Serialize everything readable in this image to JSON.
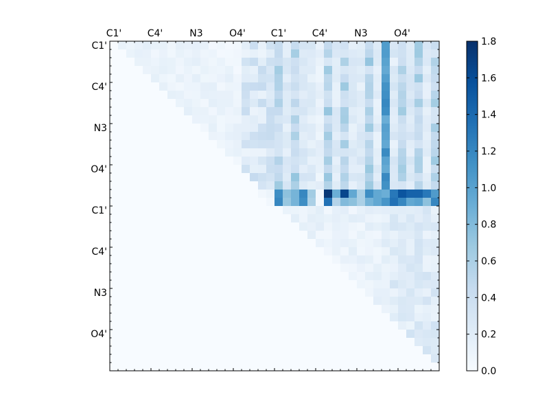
{
  "chart_data": {
    "type": "heatmap",
    "title": "",
    "xlabel": "",
    "ylabel": "",
    "colormap": "Blues",
    "x_tick_labels": [
      "C1'",
      "C4'",
      "N3",
      "O4'",
      "C1'",
      "C4'",
      "N3",
      "O4'"
    ],
    "y_tick_labels": [
      "C1'",
      "C4'",
      "N3",
      "O4'",
      "C1'",
      "C4'",
      "N3",
      "O4'"
    ],
    "grid_size": 40,
    "tick_step_cells": 5,
    "colorbar": {
      "vmin": 0.0,
      "vmax": 1.8,
      "tick_labels": [
        "0.0",
        "0.2",
        "0.4",
        "0.6",
        "0.8",
        "1.0",
        "1.2",
        "1.4",
        "1.6",
        "1.8"
      ]
    },
    "matrix_description": "upper-triangular weights; strong columns near C1' and O4' of second block; row 18-19 strongest",
    "strong_row_values": [
      [
        0.0,
        0,
        0,
        0,
        0,
        0,
        0,
        0,
        0,
        0,
        0,
        0,
        0,
        0,
        0,
        0,
        0,
        0,
        0.05,
        0.1,
        1.15,
        0.75,
        0.85,
        1.2,
        0.65,
        0.05,
        1.75,
        0.9,
        1.65,
        0.95,
        0.6,
        1.15,
        0.95,
        0.9,
        1.3,
        1.55,
        1.45,
        1.45,
        1.3,
        1.05
      ],
      [
        0.0,
        0,
        0,
        0,
        0,
        0,
        0,
        0,
        0,
        0,
        0,
        0,
        0,
        0,
        0,
        0,
        0,
        0,
        0,
        0.05,
        1.2,
        0.7,
        0.85,
        1.15,
        0.6,
        0.05,
        1.35,
        0.55,
        0.8,
        0.75,
        0.6,
        0.85,
        0.95,
        1.1,
        1.35,
        1.2,
        0.95,
        1.0,
        0.75,
        1.2
      ]
    ]
  }
}
